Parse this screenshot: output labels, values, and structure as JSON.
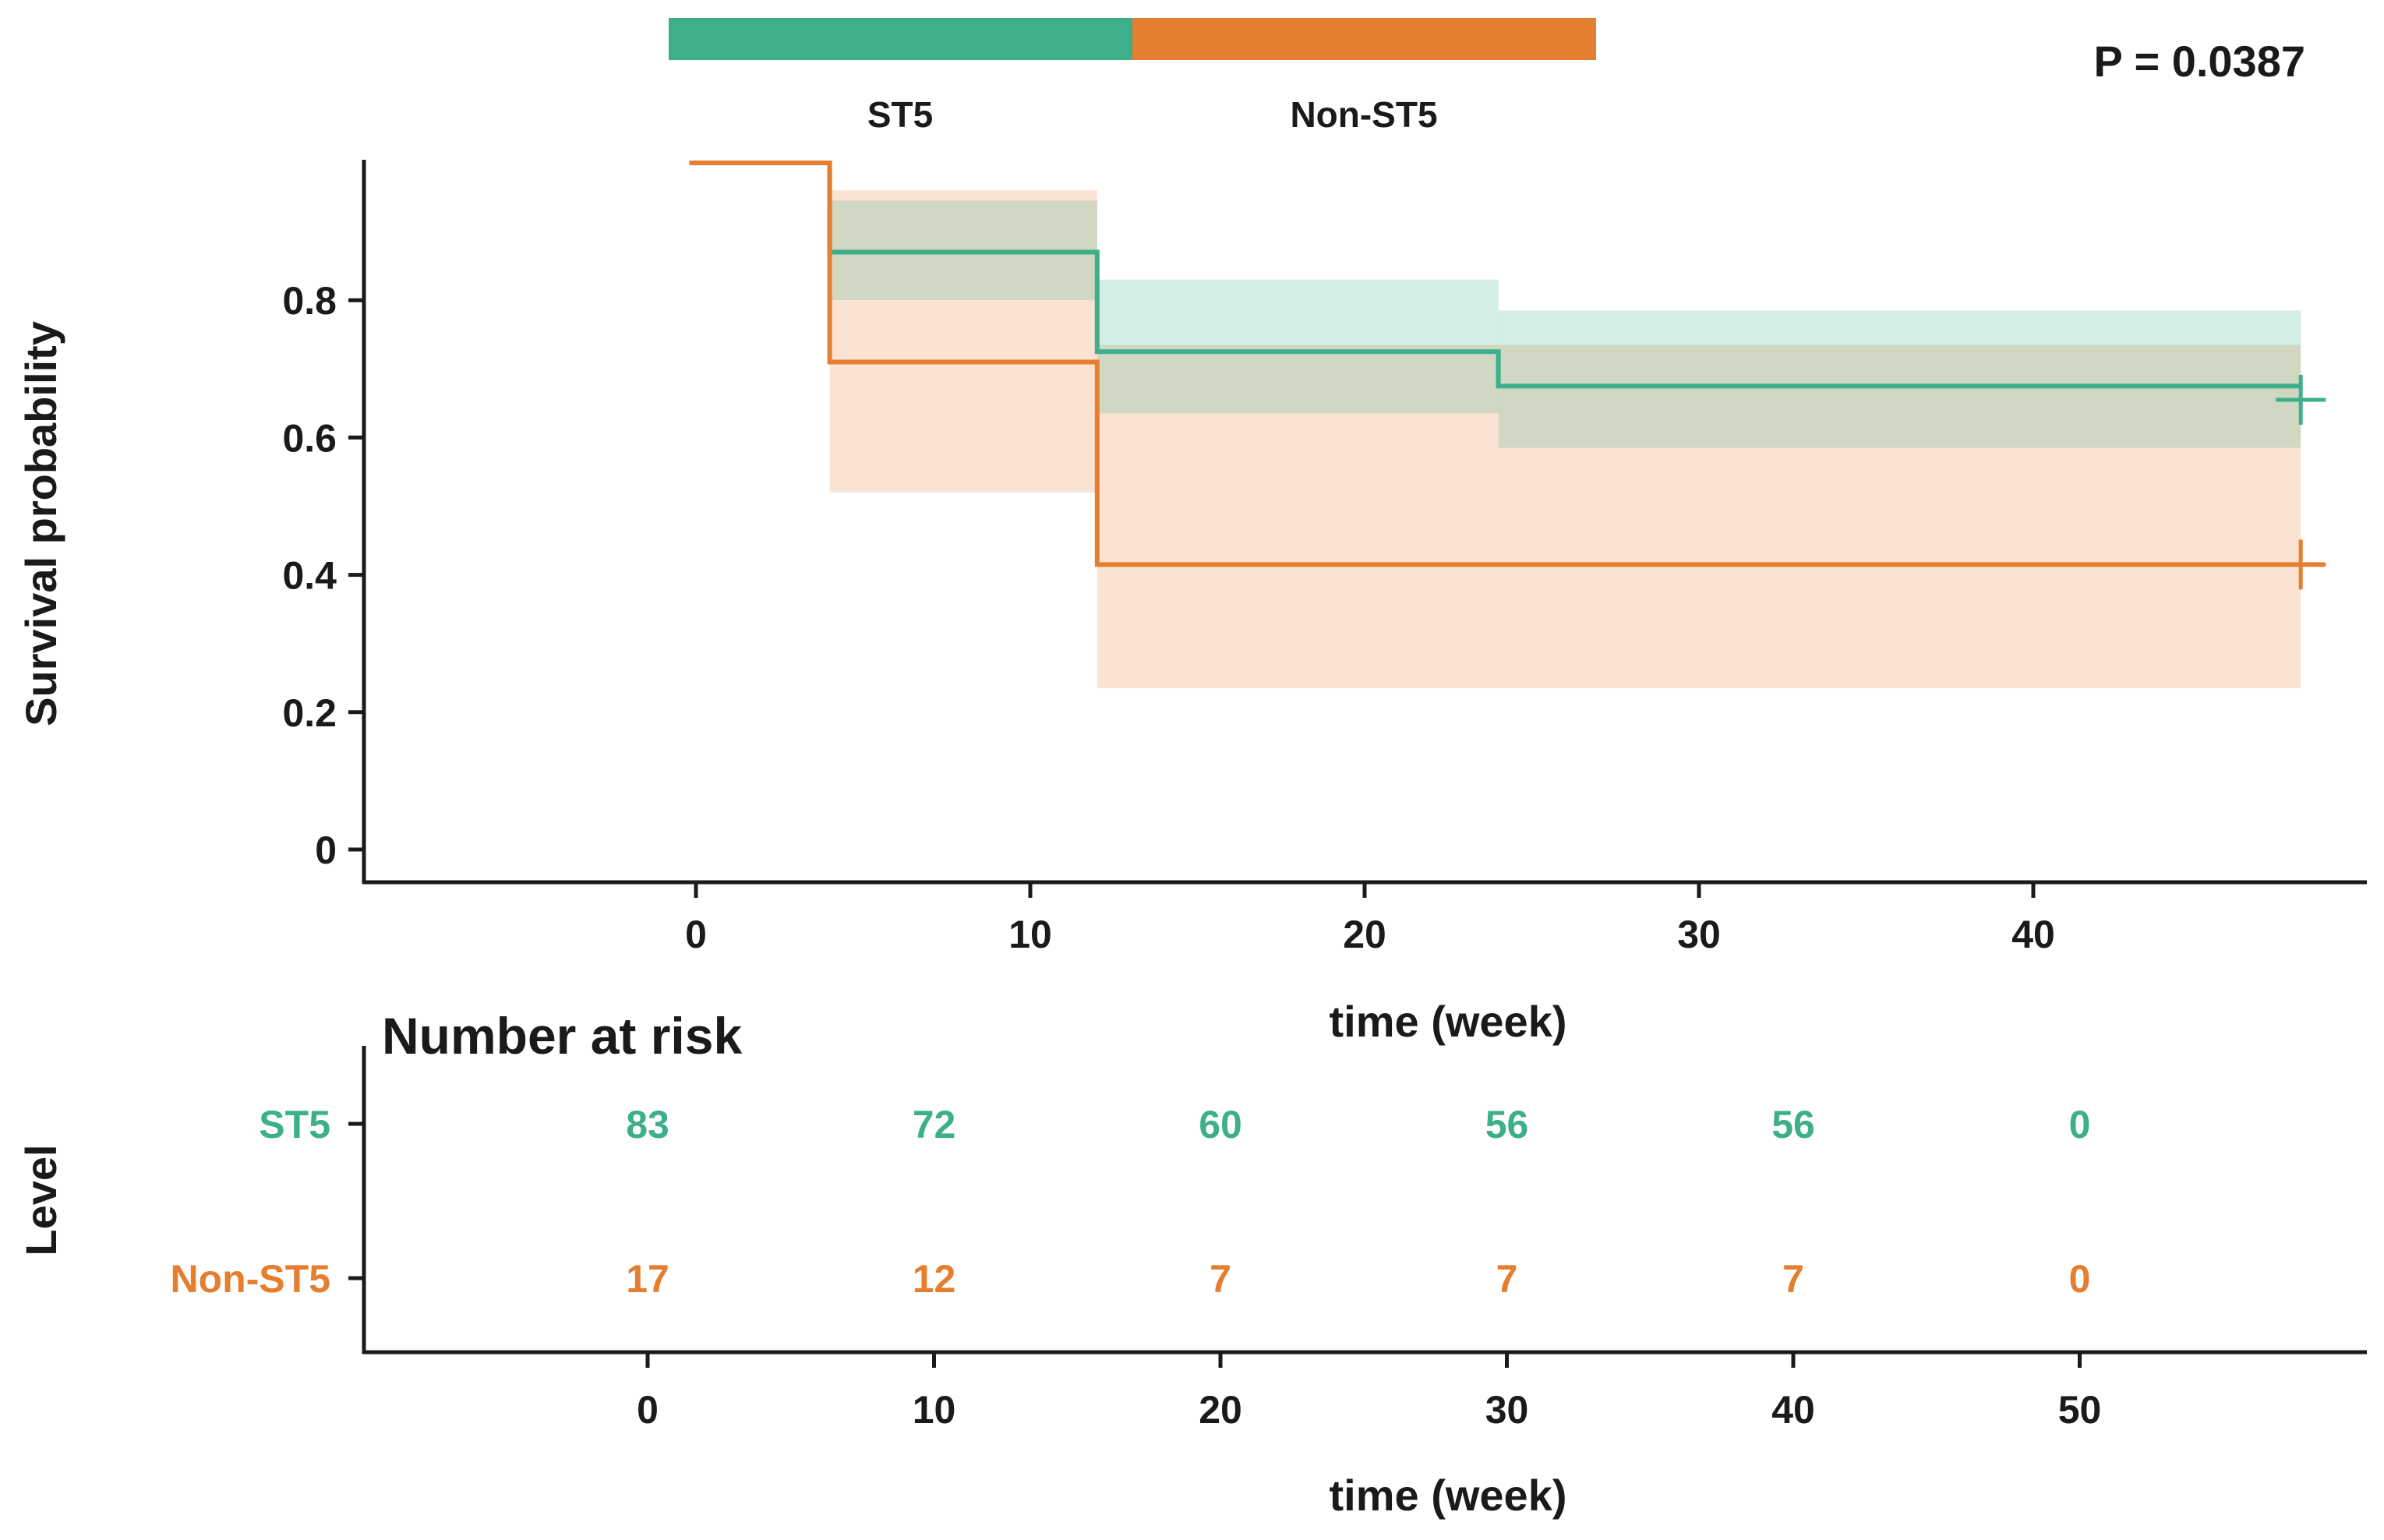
{
  "colors": {
    "st5": "#3daf8a",
    "non_st5": "#e67e30",
    "axis": "#1a1a1a"
  },
  "legend": {
    "items": [
      {
        "key": "st5",
        "label": "ST5"
      },
      {
        "key": "non_st5",
        "label": "Non-ST5"
      }
    ]
  },
  "pvalue": "P = 0.0387",
  "chart_data": [
    {
      "type": "line",
      "subtype": "kaplan-meier step",
      "xlabel": "time (week)",
      "ylabel": "Survival probability",
      "xlim": [
        -10,
        50
      ],
      "ylim": [
        -0.05,
        1.0
      ],
      "xticks": [
        0,
        10,
        20,
        30,
        40
      ],
      "yticks": [
        0,
        0.2,
        0.4,
        0.6,
        0.8
      ],
      "ytick_labels": [
        "0",
        "0.2",
        "0.4",
        "0.6",
        "0.8"
      ],
      "legend": "top (above plot)",
      "grid": false,
      "series": [
        {
          "name": "ST5",
          "color_key": "st5",
          "steps": [
            {
              "x": 0,
              "y": 1.0
            },
            {
              "x": 4,
              "y": 0.87
            },
            {
              "x": 12,
              "y": 0.725
            },
            {
              "x": 24,
              "y": 0.675
            },
            {
              "x": 48,
              "y": 0.675
            }
          ],
          "ci": [
            {
              "x0": 4,
              "x1": 12,
              "lo": 0.8,
              "hi": 0.945
            },
            {
              "x0": 12,
              "x1": 24,
              "lo": 0.635,
              "hi": 0.83
            },
            {
              "x0": 24,
              "x1": 48,
              "lo": 0.585,
              "hi": 0.785
            }
          ],
          "censor": [
            {
              "x": 48,
              "y": 0.655
            }
          ]
        },
        {
          "name": "Non-ST5",
          "color_key": "non_st5",
          "steps": [
            {
              "x": -0.2,
              "y": 1.0
            },
            {
              "x": 4,
              "y": 0.71
            },
            {
              "x": 12,
              "y": 0.415
            },
            {
              "x": 48.7,
              "y": 0.415
            }
          ],
          "ci": [
            {
              "x0": 4,
              "x1": 12,
              "lo": 0.52,
              "hi": 0.96
            },
            {
              "x0": 12,
              "x1": 48,
              "lo": 0.235,
              "hi": 0.735
            }
          ],
          "censor": [
            {
              "x": 48,
              "y": 0.415
            }
          ]
        }
      ]
    },
    {
      "type": "table",
      "title": "Number at risk",
      "xlabel": "time (week)",
      "ylabel": "Level",
      "x": [
        0,
        10,
        20,
        30,
        40,
        50
      ],
      "rows": [
        {
          "name": "ST5",
          "color_key": "st5",
          "values": [
            83,
            72,
            60,
            56,
            56,
            0
          ]
        },
        {
          "name": "Non-ST5",
          "color_key": "non_st5",
          "values": [
            17,
            12,
            7,
            7,
            7,
            0
          ]
        }
      ]
    }
  ]
}
